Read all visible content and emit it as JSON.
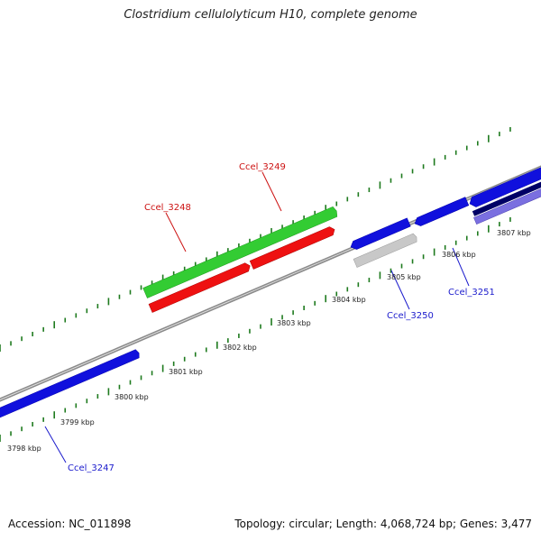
{
  "title": "Clostridium cellulolyticum H10, complete genome",
  "footer": {
    "accession": "Accession: NC_011898",
    "summary": "Topology: circular; Length: 4,068,724 bp; Genes: 3,477"
  },
  "colors": {
    "backbone": "#8a8a8a",
    "tick": "#1e7a1e",
    "forward_cds": "#1010dd",
    "rna_gene": "#33cc33",
    "pseudo_or_highlight": "#ee1111",
    "other_gene": "#c8c8c8",
    "dark_gene": "#000066",
    "light_gene": "#7a6fe0",
    "label_blue": "#1a1acc",
    "label_red": "#cc1111"
  },
  "scale_labels": [
    "3798 kbp",
    "3799 kbp",
    "3800 kbp",
    "3801 kbp",
    "3802 kbp",
    "3803 kbp",
    "3804 kbp",
    "3805 kbp",
    "3806 kbp",
    "3807 kbp"
  ],
  "gene_labels": [
    {
      "id": "ccel-3247",
      "text": "Ccel_3247",
      "color": "blue"
    },
    {
      "id": "ccel-3248",
      "text": "Ccel_3248",
      "color": "red"
    },
    {
      "id": "ccel-3249",
      "text": "Ccel_3249",
      "color": "red"
    },
    {
      "id": "ccel-3250",
      "text": "Ccel_3250",
      "color": "blue"
    },
    {
      "id": "ccel-3251",
      "text": "Ccel_3251",
      "color": "blue"
    }
  ]
}
